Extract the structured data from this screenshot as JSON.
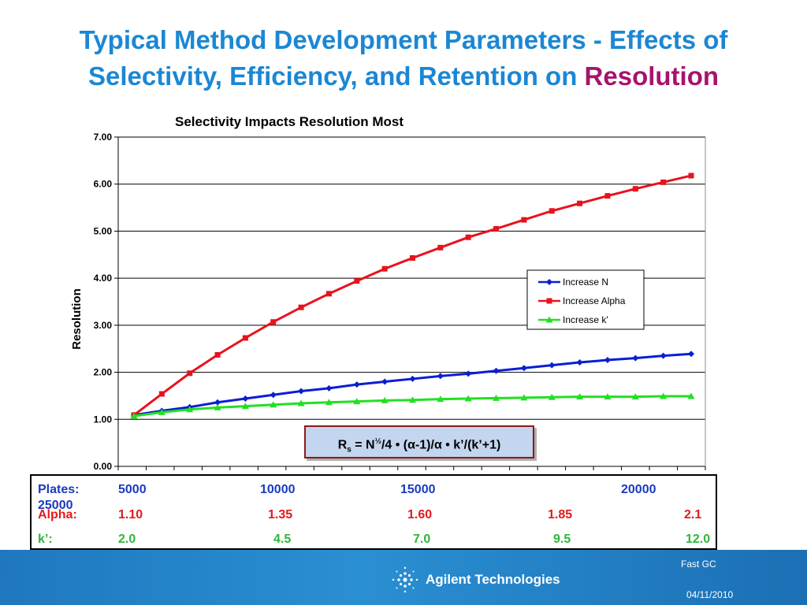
{
  "slide": {
    "title_line1": "Typical Method Development Parameters - Effects of",
    "title_line2": "Selectivity, Efficiency, and Retention on ",
    "title_accent": "Resolution"
  },
  "chart_data": {
    "type": "line",
    "title": "Selectivity Impacts Resolution Most",
    "xlabel": "",
    "ylabel": "Resolution",
    "ylim": [
      0,
      7
    ],
    "yticks": [
      "0.00",
      "1.00",
      "2.00",
      "3.00",
      "4.00",
      "5.00",
      "6.00",
      "7.00"
    ],
    "grid": true,
    "legend_position": "right",
    "x": [
      1,
      2,
      3,
      4,
      5,
      6,
      7,
      8,
      9,
      10,
      11,
      12,
      13,
      14,
      15,
      16,
      17,
      18,
      19,
      20,
      21
    ],
    "series": [
      {
        "name": "Increase N",
        "color": "#0a1ed2",
        "marker": "diamond",
        "values": [
          1.09,
          1.18,
          1.26,
          1.36,
          1.44,
          1.52,
          1.6,
          1.66,
          1.74,
          1.8,
          1.86,
          1.92,
          1.97,
          2.03,
          2.09,
          2.15,
          2.21,
          2.26,
          2.3,
          2.35,
          2.39
        ]
      },
      {
        "name": "Increase Alpha",
        "color": "#e8121d",
        "marker": "square",
        "values": [
          1.09,
          1.54,
          1.98,
          2.37,
          2.73,
          3.07,
          3.38,
          3.67,
          3.94,
          4.2,
          4.43,
          4.65,
          4.87,
          5.05,
          5.24,
          5.43,
          5.59,
          5.75,
          5.9,
          6.04,
          6.18
        ]
      },
      {
        "name": "Increase k'",
        "color": "#22e022",
        "marker": "triangle",
        "values": [
          1.07,
          1.15,
          1.21,
          1.25,
          1.28,
          1.31,
          1.34,
          1.36,
          1.38,
          1.4,
          1.41,
          1.43,
          1.44,
          1.45,
          1.46,
          1.47,
          1.48,
          1.48,
          1.48,
          1.49,
          1.49
        ]
      }
    ]
  },
  "formula": {
    "rs": "R",
    "rs_sub": "s",
    "eq": " = N",
    "half": "½",
    "rest": "/4 • (α-1)/α • k’/(k’+1)"
  },
  "params": {
    "plates_label": "Plates:",
    "plates": [
      "5000",
      "10000",
      "15000",
      "20000"
    ],
    "plates_wrap": "25000",
    "alpha_label": "Alpha:",
    "alpha": [
      "1.10",
      "1.35",
      "1.60",
      "1.85",
      "2.1"
    ],
    "k_label": "k’:",
    "k": [
      "2.0",
      "4.5",
      "7.0",
      "9.5",
      "12.0"
    ]
  },
  "footer": {
    "topic": "Fast GC",
    "company": "Agilent Technologies",
    "date": "04/11/2010"
  }
}
